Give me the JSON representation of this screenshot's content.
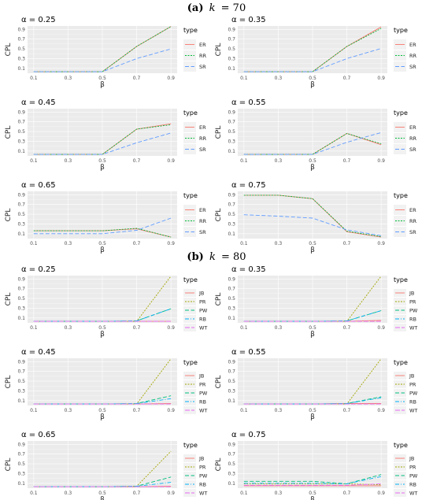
{
  "sections": [
    {
      "title": "(a) k = 70",
      "title_prefix": "(a)",
      "title_var": "k",
      "title_eq": "= 70"
    },
    {
      "title": "(b) k = 80",
      "title_prefix": "(b)",
      "title_var": "k",
      "title_eq": "= 80"
    }
  ],
  "colors": {
    "panel_bg": "#ebebeb",
    "grid": "#ffffff",
    "ER": "#f8766d",
    "RR": "#00ba38",
    "SR": "#619cff",
    "JB": "#f8766d",
    "PR": "#a3a500",
    "PW": "#00bf7d",
    "RB": "#00b0f6",
    "WT": "#e76bf3"
  },
  "chart_data": [
    {
      "type": "line",
      "section": 0,
      "title": "α = 0.25",
      "xlabel": "β",
      "ylabel": "CPL",
      "legend_title": "type",
      "x": [
        0.1,
        0.3,
        0.5,
        0.7,
        0.9
      ],
      "x_ticks": [
        "0.1",
        "0.3",
        "0.5",
        "0.7",
        "0.9"
      ],
      "y_ticks": [
        "0.1",
        "0.3",
        "0.5",
        "0.7",
        "0.9"
      ],
      "ylim": [
        0.0,
        0.97
      ],
      "series": [
        {
          "name": "ER",
          "values": [
            0.03,
            0.03,
            0.03,
            0.55,
            0.96
          ]
        },
        {
          "name": "RR",
          "values": [
            0.03,
            0.03,
            0.03,
            0.55,
            0.96
          ]
        },
        {
          "name": "SR",
          "values": [
            0.03,
            0.03,
            0.03,
            0.3,
            0.5
          ]
        }
      ]
    },
    {
      "type": "line",
      "section": 0,
      "title": "α = 0.35",
      "xlabel": "β",
      "ylabel": "CPL",
      "legend_title": "type",
      "x": [
        0.1,
        0.3,
        0.5,
        0.7,
        0.9
      ],
      "x_ticks": [
        "0.1",
        "0.3",
        "0.5",
        "0.7",
        "0.9"
      ],
      "y_ticks": [
        "0.1",
        "0.3",
        "0.5",
        "0.7",
        "0.9"
      ],
      "ylim": [
        0.0,
        0.97
      ],
      "series": [
        {
          "name": "ER",
          "values": [
            0.03,
            0.03,
            0.03,
            0.55,
            0.95
          ]
        },
        {
          "name": "RR",
          "values": [
            0.03,
            0.03,
            0.03,
            0.55,
            0.92
          ]
        },
        {
          "name": "SR",
          "values": [
            0.03,
            0.03,
            0.03,
            0.3,
            0.51
          ]
        }
      ]
    },
    {
      "type": "line",
      "section": 0,
      "title": "α = 0.45",
      "xlabel": "β",
      "ylabel": "CPL",
      "legend_title": "type",
      "x": [
        0.1,
        0.3,
        0.5,
        0.7,
        0.9
      ],
      "x_ticks": [
        "0.1",
        "0.3",
        "0.5",
        "0.7",
        "0.9"
      ],
      "y_ticks": [
        "0.1",
        "0.3",
        "0.5",
        "0.7",
        "0.9"
      ],
      "ylim": [
        0.0,
        0.97
      ],
      "series": [
        {
          "name": "ER",
          "values": [
            0.03,
            0.03,
            0.03,
            0.55,
            0.66
          ]
        },
        {
          "name": "RR",
          "values": [
            0.03,
            0.03,
            0.03,
            0.55,
            0.64
          ]
        },
        {
          "name": "SR",
          "values": [
            0.03,
            0.03,
            0.03,
            0.27,
            0.47
          ]
        }
      ]
    },
    {
      "type": "line",
      "section": 0,
      "title": "α = 0.55",
      "xlabel": "β",
      "ylabel": "CPL",
      "legend_title": "type",
      "x": [
        0.1,
        0.3,
        0.5,
        0.7,
        0.9
      ],
      "x_ticks": [
        "0.1",
        "0.3",
        "0.5",
        "0.7",
        "0.9"
      ],
      "y_ticks": [
        "0.1",
        "0.3",
        "0.5",
        "0.7",
        "0.9"
      ],
      "ylim": [
        0.0,
        0.97
      ],
      "series": [
        {
          "name": "ER",
          "values": [
            0.03,
            0.03,
            0.03,
            0.46,
            0.23
          ]
        },
        {
          "name": "RR",
          "values": [
            0.03,
            0.03,
            0.03,
            0.46,
            0.25
          ]
        },
        {
          "name": "SR",
          "values": [
            0.03,
            0.03,
            0.03,
            0.28,
            0.48
          ]
        }
      ]
    },
    {
      "type": "line",
      "section": 0,
      "title": "α = 0.65",
      "xlabel": "β",
      "ylabel": "CPL",
      "legend_title": "type",
      "x": [
        0.1,
        0.3,
        0.5,
        0.7,
        0.9
      ],
      "x_ticks": [
        "0.1",
        "0.3",
        "0.5",
        "0.7",
        "0.9"
      ],
      "y_ticks": [
        "0.1",
        "0.3",
        "0.5",
        "0.7",
        "0.9"
      ],
      "ylim": [
        0.0,
        0.97
      ],
      "series": [
        {
          "name": "ER",
          "values": [
            0.16,
            0.16,
            0.16,
            0.2,
            0.03
          ]
        },
        {
          "name": "RR",
          "values": [
            0.16,
            0.16,
            0.16,
            0.21,
            0.03
          ]
        },
        {
          "name": "SR",
          "values": [
            0.1,
            0.1,
            0.1,
            0.17,
            0.42
          ]
        }
      ]
    },
    {
      "type": "line",
      "section": 0,
      "title": "α = 0.75",
      "xlabel": "β",
      "ylabel": "CPL",
      "legend_title": "type",
      "x": [
        0.1,
        0.3,
        0.5,
        0.7,
        0.9
      ],
      "x_ticks": [
        "0.1",
        "0.3",
        "0.5",
        "0.7",
        "0.9"
      ],
      "y_ticks": [
        "0.1",
        "0.3",
        "0.5",
        "0.7",
        "0.9"
      ],
      "ylim": [
        0.0,
        0.97
      ],
      "series": [
        {
          "name": "ER",
          "values": [
            0.89,
            0.89,
            0.82,
            0.14,
            0.03
          ]
        },
        {
          "name": "RR",
          "values": [
            0.89,
            0.89,
            0.82,
            0.15,
            0.04
          ]
        },
        {
          "name": "SR",
          "values": [
            0.49,
            0.46,
            0.42,
            0.18,
            0.06
          ]
        }
      ]
    },
    {
      "type": "line",
      "section": 1,
      "title": "α = 0.25",
      "xlabel": "β",
      "ylabel": "CPL",
      "legend_title": "type",
      "x": [
        0.1,
        0.3,
        0.5,
        0.7,
        0.9
      ],
      "x_ticks": [
        "0.1",
        "0.3",
        "0.5",
        "0.7",
        "0.9"
      ],
      "y_ticks": [
        "0.1",
        "0.3",
        "0.5",
        "0.7",
        "0.9"
      ],
      "ylim": [
        0.0,
        0.97
      ],
      "series": [
        {
          "name": "JB",
          "values": [
            0.03,
            0.03,
            0.03,
            0.03,
            0.03
          ]
        },
        {
          "name": "PR",
          "values": [
            0.03,
            0.03,
            0.03,
            0.03,
            0.96
          ]
        },
        {
          "name": "PW",
          "values": [
            0.03,
            0.03,
            0.03,
            0.04,
            0.29
          ]
        },
        {
          "name": "RB",
          "values": [
            0.03,
            0.03,
            0.03,
            0.04,
            0.29
          ]
        },
        {
          "name": "WT",
          "values": [
            0.03,
            0.03,
            0.03,
            0.03,
            0.03
          ]
        }
      ]
    },
    {
      "type": "line",
      "section": 1,
      "title": "α = 0.35",
      "xlabel": "β",
      "ylabel": "CPL",
      "legend_title": "type",
      "x": [
        0.1,
        0.3,
        0.5,
        0.7,
        0.9
      ],
      "x_ticks": [
        "0.1",
        "0.3",
        "0.5",
        "0.7",
        "0.9"
      ],
      "y_ticks": [
        "0.1",
        "0.3",
        "0.5",
        "0.7",
        "0.9"
      ],
      "ylim": [
        0.0,
        0.97
      ],
      "series": [
        {
          "name": "JB",
          "values": [
            0.03,
            0.03,
            0.03,
            0.03,
            0.05
          ]
        },
        {
          "name": "PR",
          "values": [
            0.03,
            0.03,
            0.03,
            0.03,
            0.96
          ]
        },
        {
          "name": "PW",
          "values": [
            0.03,
            0.03,
            0.03,
            0.04,
            0.25
          ]
        },
        {
          "name": "RB",
          "values": [
            0.03,
            0.03,
            0.03,
            0.04,
            0.25
          ]
        },
        {
          "name": "WT",
          "values": [
            0.03,
            0.03,
            0.03,
            0.03,
            0.03
          ]
        }
      ]
    },
    {
      "type": "line",
      "section": 1,
      "title": "α = 0.45",
      "xlabel": "β",
      "ylabel": "CPL",
      "legend_title": "type",
      "x": [
        0.1,
        0.3,
        0.5,
        0.7,
        0.9
      ],
      "x_ticks": [
        "0.1",
        "0.3",
        "0.5",
        "0.7",
        "0.9"
      ],
      "y_ticks": [
        "0.1",
        "0.3",
        "0.5",
        "0.7",
        "0.9"
      ],
      "ylim": [
        0.0,
        0.97
      ],
      "series": [
        {
          "name": "JB",
          "values": [
            0.03,
            0.03,
            0.03,
            0.03,
            0.04
          ]
        },
        {
          "name": "PR",
          "values": [
            0.03,
            0.03,
            0.03,
            0.03,
            0.96
          ]
        },
        {
          "name": "PW",
          "values": [
            0.03,
            0.03,
            0.03,
            0.04,
            0.2
          ]
        },
        {
          "name": "RB",
          "values": [
            0.03,
            0.03,
            0.03,
            0.04,
            0.14
          ]
        },
        {
          "name": "WT",
          "values": [
            0.03,
            0.03,
            0.03,
            0.03,
            0.03
          ]
        }
      ]
    },
    {
      "type": "line",
      "section": 1,
      "title": "α = 0.55",
      "xlabel": "β",
      "ylabel": "CPL",
      "legend_title": "type",
      "x": [
        0.1,
        0.3,
        0.5,
        0.7,
        0.9
      ],
      "x_ticks": [
        "0.1",
        "0.3",
        "0.5",
        "0.7",
        "0.9"
      ],
      "y_ticks": [
        "0.1",
        "0.3",
        "0.5",
        "0.7",
        "0.9"
      ],
      "ylim": [
        0.0,
        0.97
      ],
      "series": [
        {
          "name": "JB",
          "values": [
            0.03,
            0.03,
            0.03,
            0.04,
            0.04
          ]
        },
        {
          "name": "PR",
          "values": [
            0.03,
            0.03,
            0.03,
            0.03,
            0.96
          ]
        },
        {
          "name": "PW",
          "values": [
            0.03,
            0.03,
            0.03,
            0.04,
            0.18
          ]
        },
        {
          "name": "RB",
          "values": [
            0.03,
            0.03,
            0.03,
            0.04,
            0.16
          ]
        },
        {
          "name": "WT",
          "values": [
            0.03,
            0.03,
            0.03,
            0.03,
            0.03
          ]
        }
      ]
    },
    {
      "type": "line",
      "section": 1,
      "title": "α = 0.65",
      "xlabel": "β",
      "ylabel": "CPL",
      "legend_title": "type",
      "x": [
        0.1,
        0.3,
        0.5,
        0.7,
        0.9
      ],
      "x_ticks": [
        "0.1",
        "0.3",
        "0.5",
        "0.7",
        "0.9"
      ],
      "y_ticks": [
        "0.1",
        "0.3",
        "0.5",
        "0.7",
        "0.9"
      ],
      "ylim": [
        0.0,
        0.97
      ],
      "series": [
        {
          "name": "JB",
          "values": [
            0.03,
            0.03,
            0.03,
            0.03,
            0.04
          ]
        },
        {
          "name": "PR",
          "values": [
            0.03,
            0.03,
            0.03,
            0.04,
            0.76
          ]
        },
        {
          "name": "PW",
          "values": [
            0.03,
            0.03,
            0.03,
            0.04,
            0.23
          ]
        },
        {
          "name": "RB",
          "values": [
            0.03,
            0.03,
            0.03,
            0.04,
            0.12
          ]
        },
        {
          "name": "WT",
          "values": [
            0.03,
            0.03,
            0.03,
            0.03,
            0.03
          ]
        }
      ]
    },
    {
      "type": "line",
      "section": 1,
      "title": "α = 0.75",
      "xlabel": "β",
      "ylabel": "CPL",
      "legend_title": "type",
      "x": [
        0.1,
        0.3,
        0.5,
        0.7,
        0.9
      ],
      "x_ticks": [
        "0.1",
        "0.3",
        "0.5",
        "0.7",
        "0.9"
      ],
      "y_ticks": [
        "0.1",
        "0.3",
        "0.5",
        "0.7",
        "0.9"
      ],
      "ylim": [
        0.0,
        0.97
      ],
      "series": [
        {
          "name": "JB",
          "values": [
            0.05,
            0.05,
            0.05,
            0.05,
            0.05
          ]
        },
        {
          "name": "PR",
          "values": [
            0.09,
            0.09,
            0.09,
            0.09,
            0.07
          ]
        },
        {
          "name": "PW",
          "values": [
            0.14,
            0.14,
            0.14,
            0.09,
            0.28
          ]
        },
        {
          "name": "RB",
          "values": [
            0.1,
            0.1,
            0.1,
            0.09,
            0.24
          ]
        },
        {
          "name": "WT",
          "values": [
            0.06,
            0.06,
            0.06,
            0.06,
            0.09
          ]
        }
      ]
    }
  ]
}
